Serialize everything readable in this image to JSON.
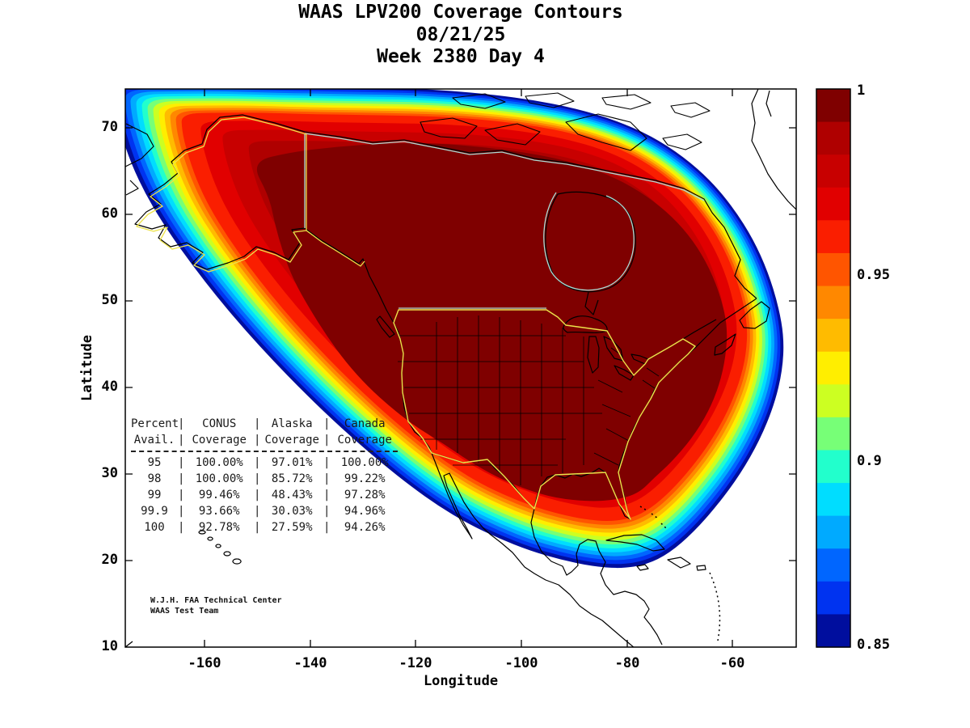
{
  "title": {
    "line1": "WAAS LPV200 Coverage Contours",
    "line2": "08/21/25",
    "line3": "Week 2380 Day 4"
  },
  "axes": {
    "x_label": "Longitude",
    "y_label": "Latitude",
    "x_ticks": [
      "-160",
      "-140",
      "-120",
      "-100",
      "-80",
      "-60"
    ],
    "y_ticks": [
      "70",
      "60",
      "50",
      "40",
      "30",
      "20",
      "10"
    ]
  },
  "colorbar": {
    "tick_labels": [
      "1",
      "0.95",
      "0.9",
      "0.85"
    ],
    "max": 1,
    "min": 0.85,
    "band_colors_top_to_bottom": [
      "#7f0000",
      "#af0000",
      "#c80000",
      "#e10000",
      "#fa1e00",
      "#ff5500",
      "#ff8800",
      "#ffbb00",
      "#ffee00",
      "#ccff22",
      "#77ff77",
      "#22ffcc",
      "#00ddff",
      "#00aaff",
      "#0066ff",
      "#0033f0",
      "#000e9e"
    ]
  },
  "coverage_table": {
    "head1": [
      "Percent",
      "CONUS",
      "Alaska",
      "Canada"
    ],
    "head2": [
      "Avail.",
      "Coverage",
      "Coverage",
      "Coverage"
    ],
    "rows": [
      [
        "95",
        "100.00%",
        "97.01%",
        "100.00%"
      ],
      [
        "98",
        "100.00%",
        "85.72%",
        "99.22%"
      ],
      [
        "99",
        "99.46%",
        "48.43%",
        "97.28%"
      ],
      [
        "99.9",
        "93.66%",
        "30.03%",
        "94.96%"
      ],
      [
        "100",
        "92.78%",
        "27.59%",
        "94.26%"
      ]
    ]
  },
  "credit": {
    "line1": "W.J.H. FAA Technical Center",
    "line2": "WAAS Test Team"
  },
  "chart_data": [
    {
      "type": "heatmap",
      "subtype": "filled-contour-coverage-map",
      "title": "WAAS LPV200 Coverage Contours",
      "date": "08/21/25",
      "gps_week": "2380",
      "gps_day": "4",
      "xlabel": "Longitude",
      "ylabel": "Latitude",
      "xlim": [
        -175,
        -48
      ],
      "ylim": [
        10,
        74.5
      ],
      "x_ticks": [
        -160,
        -140,
        -120,
        -100,
        -80,
        -60
      ],
      "y_ticks": [
        70,
        60,
        50,
        40,
        30,
        20,
        10
      ],
      "colorbar_range": [
        0.85,
        1
      ],
      "colorbar_ticks": [
        1,
        0.95,
        0.9,
        0.85
      ],
      "levels_description": "Availability >= 0.999 shown as dark red core over CONUS, Canada and Alaska; concentric rainbow fringe rings step down through red, orange, yellow, green, cyan and blue to 0.85 dark blue at the coverage edge",
      "grid": false,
      "legend_position": "right-colorbar"
    },
    {
      "type": "table",
      "columns": [
        "Percent Avail.",
        "CONUS Coverage",
        "Alaska Coverage",
        "Canada Coverage"
      ],
      "rows": [
        [
          "95",
          "100.00%",
          "97.01%",
          "100.00%"
        ],
        [
          "98",
          "100.00%",
          "85.72%",
          "99.22%"
        ],
        [
          "99",
          "99.46%",
          "48.43%",
          "97.28%"
        ],
        [
          "99.9",
          "93.66%",
          "30.03%",
          "94.96%"
        ],
        [
          "100",
          "92.78%",
          "27.59%",
          "94.26%"
        ]
      ]
    }
  ]
}
